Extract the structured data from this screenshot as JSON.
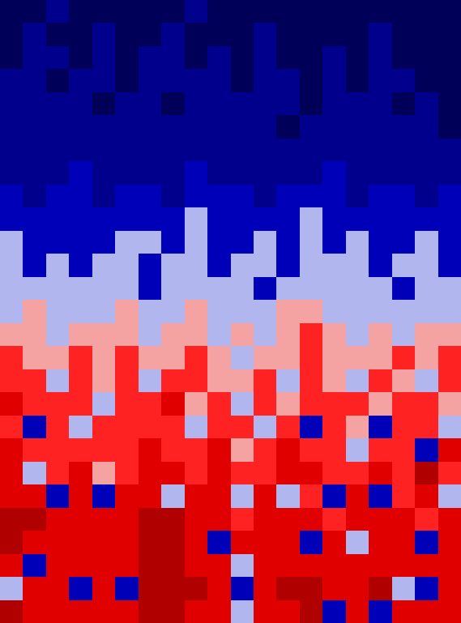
{
  "chart_data": {
    "type": "heatmap",
    "tick_labels": false,
    "levels": [
      1,
      2,
      3,
      4,
      5,
      6,
      7
    ],
    "colors": [
      "#000058",
      "#00008c",
      "#0000b8",
      "#b2b6ee",
      "#f4a2a2",
      "#ff2222",
      "#e00000",
      "#b00000"
    ],
    "values": [
      [
        0,
        0,
        1,
        0,
        0,
        0,
        0,
        0,
        1,
        0,
        0,
        0,
        0,
        0,
        0,
        0,
        0,
        0,
        0,
        0
      ],
      [
        0,
        1,
        0,
        0,
        1,
        0,
        0,
        1,
        0,
        0,
        0,
        1,
        0,
        0,
        0,
        0,
        1,
        0,
        0,
        0
      ],
      [
        0,
        1,
        1,
        0,
        1,
        0,
        1,
        1,
        0,
        1,
        0,
        1,
        0,
        0,
        1,
        0,
        1,
        0,
        0,
        0
      ],
      [
        1,
        1,
        0,
        1,
        1,
        0,
        1,
        1,
        1,
        1,
        0,
        1,
        1,
        0,
        1,
        0,
        1,
        1,
        0,
        0
      ],
      [
        1,
        1,
        1,
        1,
        0,
        1,
        1,
        0,
        1,
        1,
        1,
        1,
        1,
        0,
        1,
        1,
        1,
        0,
        1,
        0
      ],
      [
        1,
        1,
        1,
        1,
        1,
        1,
        1,
        1,
        1,
        1,
        1,
        1,
        0,
        1,
        1,
        1,
        1,
        1,
        1,
        0
      ],
      [
        1,
        1,
        1,
        1,
        1,
        1,
        1,
        1,
        1,
        1,
        1,
        1,
        1,
        1,
        1,
        1,
        1,
        1,
        1,
        1
      ],
      [
        1,
        1,
        1,
        2,
        1,
        1,
        1,
        1,
        2,
        1,
        1,
        1,
        1,
        1,
        2,
        1,
        1,
        1,
        1,
        1
      ],
      [
        2,
        1,
        2,
        2,
        1,
        2,
        2,
        1,
        2,
        2,
        2,
        1,
        2,
        2,
        2,
        1,
        2,
        2,
        1,
        2
      ],
      [
        2,
        2,
        2,
        2,
        2,
        2,
        2,
        2,
        3,
        2,
        2,
        2,
        2,
        3,
        2,
        2,
        2,
        2,
        2,
        2
      ],
      [
        3,
        2,
        2,
        2,
        2,
        3,
        3,
        2,
        3,
        2,
        2,
        3,
        2,
        3,
        2,
        3,
        2,
        2,
        3,
        2
      ],
      [
        3,
        2,
        3,
        2,
        3,
        3,
        2,
        3,
        3,
        2,
        3,
        3,
        2,
        3,
        3,
        3,
        2,
        3,
        3,
        2
      ],
      [
        3,
        3,
        3,
        3,
        3,
        3,
        2,
        3,
        3,
        3,
        3,
        2,
        3,
        3,
        3,
        3,
        3,
        2,
        3,
        3
      ],
      [
        3,
        4,
        3,
        3,
        3,
        4,
        3,
        3,
        4,
        3,
        3,
        3,
        4,
        4,
        3,
        3,
        3,
        3,
        3,
        3
      ],
      [
        4,
        4,
        3,
        4,
        4,
        4,
        3,
        4,
        4,
        3,
        4,
        3,
        4,
        5,
        4,
        3,
        4,
        3,
        4,
        4
      ],
      [
        5,
        4,
        4,
        5,
        4,
        5,
        4,
        4,
        5,
        4,
        3,
        4,
        4,
        5,
        4,
        4,
        4,
        5,
        4,
        5
      ],
      [
        5,
        5,
        3,
        5,
        4,
        5,
        3,
        5,
        5,
        4,
        4,
        5,
        3,
        5,
        4,
        3,
        5,
        4,
        3,
        5
      ],
      [
        6,
        5,
        5,
        5,
        3,
        5,
        5,
        6,
        4,
        5,
        3,
        5,
        4,
        5,
        5,
        5,
        4,
        5,
        5,
        4
      ],
      [
        5,
        2,
        5,
        3,
        5,
        5,
        5,
        5,
        3,
        5,
        5,
        3,
        5,
        2,
        5,
        4,
        2,
        5,
        5,
        3
      ],
      [
        6,
        5,
        5,
        5,
        5,
        5,
        6,
        5,
        5,
        6,
        4,
        5,
        6,
        5,
        5,
        3,
        5,
        5,
        2,
        6
      ],
      [
        6,
        3,
        5,
        6,
        4,
        5,
        6,
        6,
        5,
        6,
        5,
        5,
        6,
        6,
        5,
        5,
        6,
        5,
        7,
        5
      ],
      [
        6,
        6,
        2,
        6,
        2,
        6,
        6,
        3,
        6,
        6,
        3,
        6,
        3,
        5,
        2,
        6,
        2,
        5,
        6,
        3
      ],
      [
        7,
        7,
        6,
        6,
        6,
        6,
        7,
        7,
        6,
        6,
        5,
        6,
        6,
        6,
        5,
        6,
        6,
        6,
        5,
        6
      ],
      [
        7,
        6,
        6,
        6,
        6,
        6,
        7,
        7,
        6,
        2,
        6,
        6,
        6,
        2,
        6,
        3,
        6,
        6,
        2,
        6
      ],
      [
        6,
        2,
        6,
        6,
        6,
        6,
        7,
        7,
        6,
        6,
        3,
        6,
        6,
        6,
        6,
        6,
        6,
        6,
        6,
        6
      ],
      [
        3,
        6,
        6,
        2,
        6,
        2,
        7,
        7,
        7,
        6,
        2,
        6,
        7,
        7,
        6,
        6,
        7,
        3,
        2,
        6
      ],
      [
        7,
        6,
        6,
        6,
        6,
        6,
        7,
        7,
        6,
        6,
        3,
        6,
        6,
        7,
        2,
        6,
        2,
        6,
        6,
        6
      ]
    ]
  }
}
